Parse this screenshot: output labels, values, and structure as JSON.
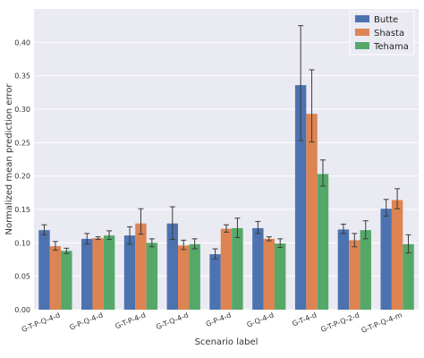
{
  "chart_data": {
    "type": "bar",
    "xlabel": "Scenario label",
    "ylabel": "Normalized mean prediction error",
    "ylim": [
      0,
      0.45
    ],
    "yticks": [
      0.0,
      0.05,
      0.1,
      0.15,
      0.2,
      0.25,
      0.3,
      0.35,
      0.4
    ],
    "ytick_labels": [
      "0.00",
      "0.05",
      "0.10",
      "0.15",
      "0.20",
      "0.25",
      "0.30",
      "0.35",
      "0.40"
    ],
    "grid": true,
    "legend_position": "top-right",
    "categories": [
      "G-T-P-Q-4-d",
      "G-P-Q-4-d",
      "G-T-P-4-d",
      "G-T-Q-4-d",
      "G-P-4-d",
      "G-Q-4-d",
      "G-T-4-d",
      "G-T-P-Q-2-d",
      "G-T-P-Q-4-m"
    ],
    "series": [
      {
        "name": "Butte",
        "color": "#4c72b0",
        "values": [
          0.119,
          0.106,
          0.111,
          0.129,
          0.083,
          0.122,
          0.336,
          0.12,
          0.151
        ],
        "err_low": [
          0.112,
          0.098,
          0.098,
          0.105,
          0.076,
          0.114,
          0.253,
          0.114,
          0.14
        ],
        "err_high": [
          0.127,
          0.114,
          0.124,
          0.154,
          0.091,
          0.132,
          0.425,
          0.128,
          0.165
        ]
      },
      {
        "name": "Shasta",
        "color": "#dd8452",
        "values": [
          0.095,
          0.107,
          0.129,
          0.096,
          0.121,
          0.106,
          0.293,
          0.104,
          0.164
        ],
        "err_low": [
          0.089,
          0.105,
          0.113,
          0.09,
          0.116,
          0.103,
          0.251,
          0.094,
          0.151
        ],
        "err_high": [
          0.102,
          0.109,
          0.151,
          0.104,
          0.127,
          0.109,
          0.359,
          0.114,
          0.181
        ]
      },
      {
        "name": "Tehama",
        "color": "#55a868",
        "values": [
          0.088,
          0.111,
          0.1,
          0.098,
          0.122,
          0.099,
          0.203,
          0.119,
          0.098
        ],
        "err_low": [
          0.084,
          0.105,
          0.094,
          0.091,
          0.108,
          0.093,
          0.185,
          0.106,
          0.085
        ],
        "err_high": [
          0.092,
          0.118,
          0.106,
          0.106,
          0.137,
          0.106,
          0.224,
          0.133,
          0.112
        ]
      }
    ]
  }
}
